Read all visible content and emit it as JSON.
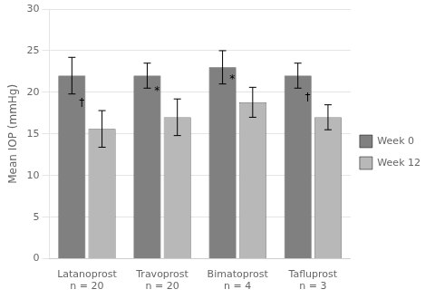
{
  "chart_data": {
    "type": "bar",
    "categories": [
      "Latanoprost\nn = 20",
      "Travoprost\nn = 20",
      "Bimatoprost\nn = 4",
      "Tafluprost\nn = 3"
    ],
    "series": [
      {
        "name": "Week 0",
        "color": "#808080",
        "values": [
          22.0,
          22.0,
          23.0,
          22.0
        ],
        "errors": [
          2.2,
          1.5,
          2.0,
          1.5
        ]
      },
      {
        "name": "Week 12",
        "color": "#b8b8b8",
        "values": [
          15.6,
          17.0,
          18.8,
          17.0
        ],
        "errors": [
          2.2,
          2.2,
          1.8,
          1.5
        ],
        "annotations": [
          "†",
          "*",
          "*",
          "†"
        ]
      }
    ],
    "ylabel": "Mean IOP (mmHg)",
    "ylim": [
      0,
      30
    ],
    "yticks": [
      0,
      5,
      10,
      15,
      20,
      25,
      30
    ],
    "grid": true,
    "legend": "right"
  }
}
